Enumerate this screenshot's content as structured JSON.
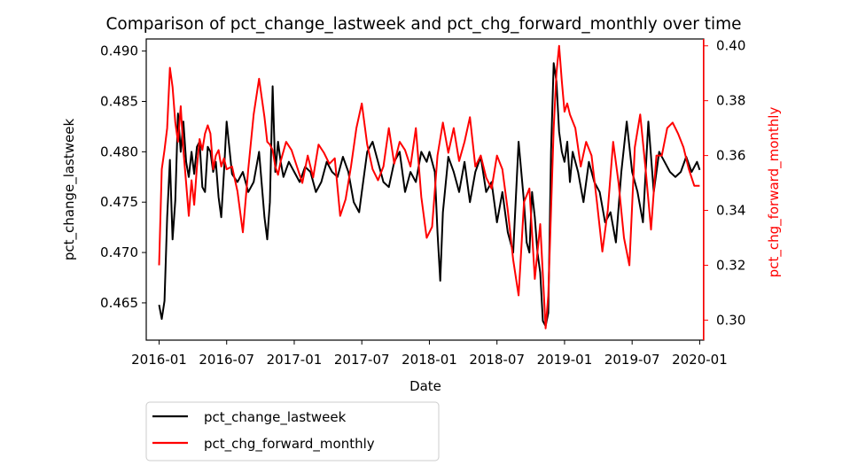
{
  "chart_data": {
    "type": "line",
    "title": "Comparison of pct_change_lastweek and pct_chg_forward_monthly over time",
    "xlabel": "Date",
    "x_ticks": [
      "2016-01",
      "2016-07",
      "2017-01",
      "2017-07",
      "2018-01",
      "2018-07",
      "2019-01",
      "2019-07",
      "2020-01"
    ],
    "x_tick_times": [
      0,
      0.5,
      1.0,
      1.5,
      2.0,
      2.5,
      3.0,
      3.5,
      4.0
    ],
    "xlim": [
      -0.095,
      4.03
    ],
    "y_left": {
      "label": "pct_change_lastweek",
      "ticks": [
        "0.465",
        "0.470",
        "0.475",
        "0.480",
        "0.485",
        "0.490"
      ],
      "tick_values": [
        0.465,
        0.47,
        0.475,
        0.48,
        0.485,
        0.49
      ],
      "ylim": [
        0.4613,
        0.4912
      ],
      "color": "#000000"
    },
    "y_right": {
      "label": "pct_chg_forward_monthly",
      "ticks": [
        "0.30",
        "0.32",
        "0.34",
        "0.36",
        "0.38",
        "0.40"
      ],
      "tick_values": [
        0.3,
        0.32,
        0.34,
        0.36,
        0.38,
        0.4
      ],
      "ylim": [
        0.2927,
        0.4025
      ],
      "color": "#ff0000"
    },
    "legend_position": "below-left",
    "series": [
      {
        "name": "pct_change_lastweek",
        "axis": "left",
        "color": "#000000",
        "x": [
          0,
          0.02,
          0.04,
          0.06,
          0.08,
          0.1,
          0.12,
          0.14,
          0.16,
          0.18,
          0.2,
          0.22,
          0.24,
          0.26,
          0.28,
          0.3,
          0.32,
          0.34,
          0.36,
          0.38,
          0.4,
          0.42,
          0.44,
          0.46,
          0.48,
          0.5,
          0.54,
          0.58,
          0.62,
          0.66,
          0.7,
          0.74,
          0.78,
          0.8,
          0.82,
          0.84,
          0.86,
          0.88,
          0.9,
          0.92,
          0.96,
          1.0,
          1.04,
          1.08,
          1.12,
          1.16,
          1.2,
          1.24,
          1.28,
          1.32,
          1.36,
          1.4,
          1.44,
          1.48,
          1.5,
          1.54,
          1.58,
          1.62,
          1.66,
          1.7,
          1.74,
          1.78,
          1.82,
          1.86,
          1.9,
          1.94,
          1.98,
          2.0,
          2.04,
          2.06,
          2.08,
          2.1,
          2.14,
          2.18,
          2.22,
          2.26,
          2.3,
          2.34,
          2.38,
          2.42,
          2.46,
          2.5,
          2.54,
          2.58,
          2.62,
          2.66,
          2.7,
          2.72,
          2.74,
          2.76,
          2.78,
          2.8,
          2.82,
          2.84,
          2.86,
          2.88,
          2.9,
          2.92,
          2.94,
          2.96,
          2.98,
          3.0,
          3.02,
          3.04,
          3.06,
          3.1,
          3.14,
          3.18,
          3.22,
          3.26,
          3.3,
          3.34,
          3.38,
          3.42,
          3.46,
          3.5,
          3.54,
          3.58,
          3.62,
          3.66,
          3.7,
          3.74,
          3.78,
          3.82,
          3.86,
          3.9,
          3.94,
          3.98,
          4.0
        ],
        "values": [
          0.4648,
          0.4634,
          0.4652,
          0.4735,
          0.4792,
          0.4713,
          0.4752,
          0.4838,
          0.48,
          0.483,
          0.479,
          0.4775,
          0.48,
          0.4778,
          0.4805,
          0.481,
          0.4765,
          0.476,
          0.4805,
          0.48,
          0.478,
          0.479,
          0.4755,
          0.4735,
          0.478,
          0.483,
          0.4778,
          0.477,
          0.478,
          0.476,
          0.477,
          0.48,
          0.4735,
          0.4713,
          0.475,
          0.4865,
          0.478,
          0.481,
          0.479,
          0.4775,
          0.479,
          0.478,
          0.477,
          0.4785,
          0.478,
          0.476,
          0.477,
          0.479,
          0.478,
          0.4775,
          0.4795,
          0.478,
          0.475,
          0.474,
          0.476,
          0.48,
          0.481,
          0.479,
          0.477,
          0.4765,
          0.479,
          0.48,
          0.476,
          0.478,
          0.477,
          0.48,
          0.479,
          0.48,
          0.478,
          0.472,
          0.4672,
          0.474,
          0.4795,
          0.478,
          0.476,
          0.479,
          0.475,
          0.478,
          0.4795,
          0.476,
          0.477,
          0.473,
          0.476,
          0.472,
          0.47,
          0.481,
          0.475,
          0.471,
          0.47,
          0.476,
          0.4735,
          0.47,
          0.468,
          0.4632,
          0.4627,
          0.464,
          0.48,
          0.4888,
          0.487,
          0.482,
          0.48,
          0.479,
          0.481,
          0.477,
          0.48,
          0.478,
          0.475,
          0.479,
          0.477,
          0.476,
          0.473,
          0.474,
          0.471,
          0.478,
          0.483,
          0.478,
          0.476,
          0.473,
          0.483,
          0.476,
          0.48,
          0.479,
          0.478,
          0.4775,
          0.478,
          0.4795,
          0.478,
          0.479,
          0.4782
        ]
      },
      {
        "name": "pct_chg_forward_monthly",
        "axis": "right",
        "color": "#ff0000",
        "x": [
          0,
          0.02,
          0.04,
          0.06,
          0.08,
          0.1,
          0.12,
          0.14,
          0.16,
          0.18,
          0.2,
          0.22,
          0.24,
          0.26,
          0.28,
          0.3,
          0.32,
          0.34,
          0.36,
          0.38,
          0.4,
          0.42,
          0.44,
          0.46,
          0.48,
          0.5,
          0.54,
          0.58,
          0.62,
          0.66,
          0.7,
          0.74,
          0.78,
          0.8,
          0.82,
          0.84,
          0.86,
          0.88,
          0.9,
          0.94,
          0.98,
          1.02,
          1.06,
          1.1,
          1.14,
          1.18,
          1.22,
          1.26,
          1.3,
          1.34,
          1.38,
          1.42,
          1.46,
          1.5,
          1.54,
          1.58,
          1.62,
          1.66,
          1.7,
          1.74,
          1.78,
          1.82,
          1.86,
          1.9,
          1.94,
          1.98,
          2.02,
          2.06,
          2.1,
          2.14,
          2.18,
          2.22,
          2.26,
          2.3,
          2.34,
          2.38,
          2.42,
          2.46,
          2.5,
          2.54,
          2.58,
          2.62,
          2.66,
          2.7,
          2.74,
          2.78,
          2.82,
          2.86,
          2.88,
          2.9,
          2.92,
          2.94,
          2.96,
          2.98,
          3.0,
          3.02,
          3.04,
          3.08,
          3.12,
          3.16,
          3.2,
          3.24,
          3.28,
          3.32,
          3.36,
          3.4,
          3.44,
          3.48,
          3.52,
          3.56,
          3.6,
          3.64,
          3.68,
          3.72,
          3.76,
          3.8,
          3.84,
          3.88,
          3.92,
          3.96,
          4.0
        ],
        "values": [
          0.32,
          0.355,
          0.362,
          0.37,
          0.392,
          0.385,
          0.372,
          0.365,
          0.378,
          0.362,
          0.35,
          0.338,
          0.351,
          0.342,
          0.356,
          0.366,
          0.362,
          0.368,
          0.371,
          0.368,
          0.355,
          0.36,
          0.362,
          0.356,
          0.359,
          0.355,
          0.356,
          0.347,
          0.332,
          0.355,
          0.375,
          0.388,
          0.374,
          0.365,
          0.364,
          0.362,
          0.356,
          0.353,
          0.358,
          0.365,
          0.362,
          0.356,
          0.35,
          0.36,
          0.352,
          0.364,
          0.361,
          0.357,
          0.359,
          0.338,
          0.344,
          0.356,
          0.37,
          0.379,
          0.364,
          0.355,
          0.351,
          0.356,
          0.37,
          0.357,
          0.365,
          0.362,
          0.356,
          0.37,
          0.345,
          0.33,
          0.334,
          0.36,
          0.372,
          0.361,
          0.37,
          0.358,
          0.365,
          0.374,
          0.356,
          0.36,
          0.352,
          0.348,
          0.36,
          0.355,
          0.34,
          0.322,
          0.309,
          0.343,
          0.348,
          0.315,
          0.335,
          0.297,
          0.309,
          0.34,
          0.37,
          0.39,
          0.4,
          0.387,
          0.376,
          0.379,
          0.375,
          0.37,
          0.356,
          0.365,
          0.36,
          0.343,
          0.325,
          0.34,
          0.365,
          0.35,
          0.33,
          0.32,
          0.363,
          0.375,
          0.355,
          0.333,
          0.36,
          0.36,
          0.37,
          0.372,
          0.368,
          0.363,
          0.355,
          0.349,
          0.349
        ]
      }
    ]
  },
  "legend": {
    "items": [
      {
        "label": "pct_change_lastweek",
        "color": "#000000"
      },
      {
        "label": "pct_chg_forward_monthly",
        "color": "#ff0000"
      }
    ]
  }
}
